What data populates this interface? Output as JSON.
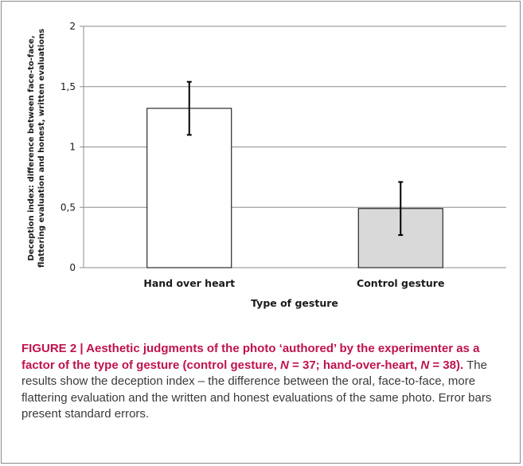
{
  "chart_data": {
    "type": "bar",
    "categories": [
      "Hand over heart",
      "Control gesture"
    ],
    "values": [
      1.32,
      0.49
    ],
    "error_bars": [
      0.22,
      0.22
    ],
    "bar_colors": [
      "#ffffff",
      "#d9d9d9"
    ],
    "ylabel_lines": [
      "Deception index: difference between face-to-face,",
      "flattering evaluation and honest, written evaluations"
    ],
    "xlabel": "Type of gesture",
    "ylim": [
      0,
      2
    ],
    "yticks": [
      0,
      0.5,
      1,
      1.5,
      2
    ],
    "ytick_labels": [
      "0",
      "0,5",
      "1",
      "1,5",
      "2"
    ],
    "grid": true
  },
  "caption": {
    "title_html": "FIGURE 2 | Aesthetic judgments of the photo ‘authored’ by the experimenter as a factor of the type of gesture (control gesture, <i>N</i> = 37; hand-over-heart, <i>N</i> = 38).",
    "description": "The results show the deception index – the difference between the oral, face-to-face, more flattering evaluation and the written and honest evaluations of the same photo. Error bars present standard errors."
  },
  "colors": {
    "caption_title": "#c0124e",
    "gridline": "#8c8c8c",
    "frame": "#8a8a8a"
  }
}
